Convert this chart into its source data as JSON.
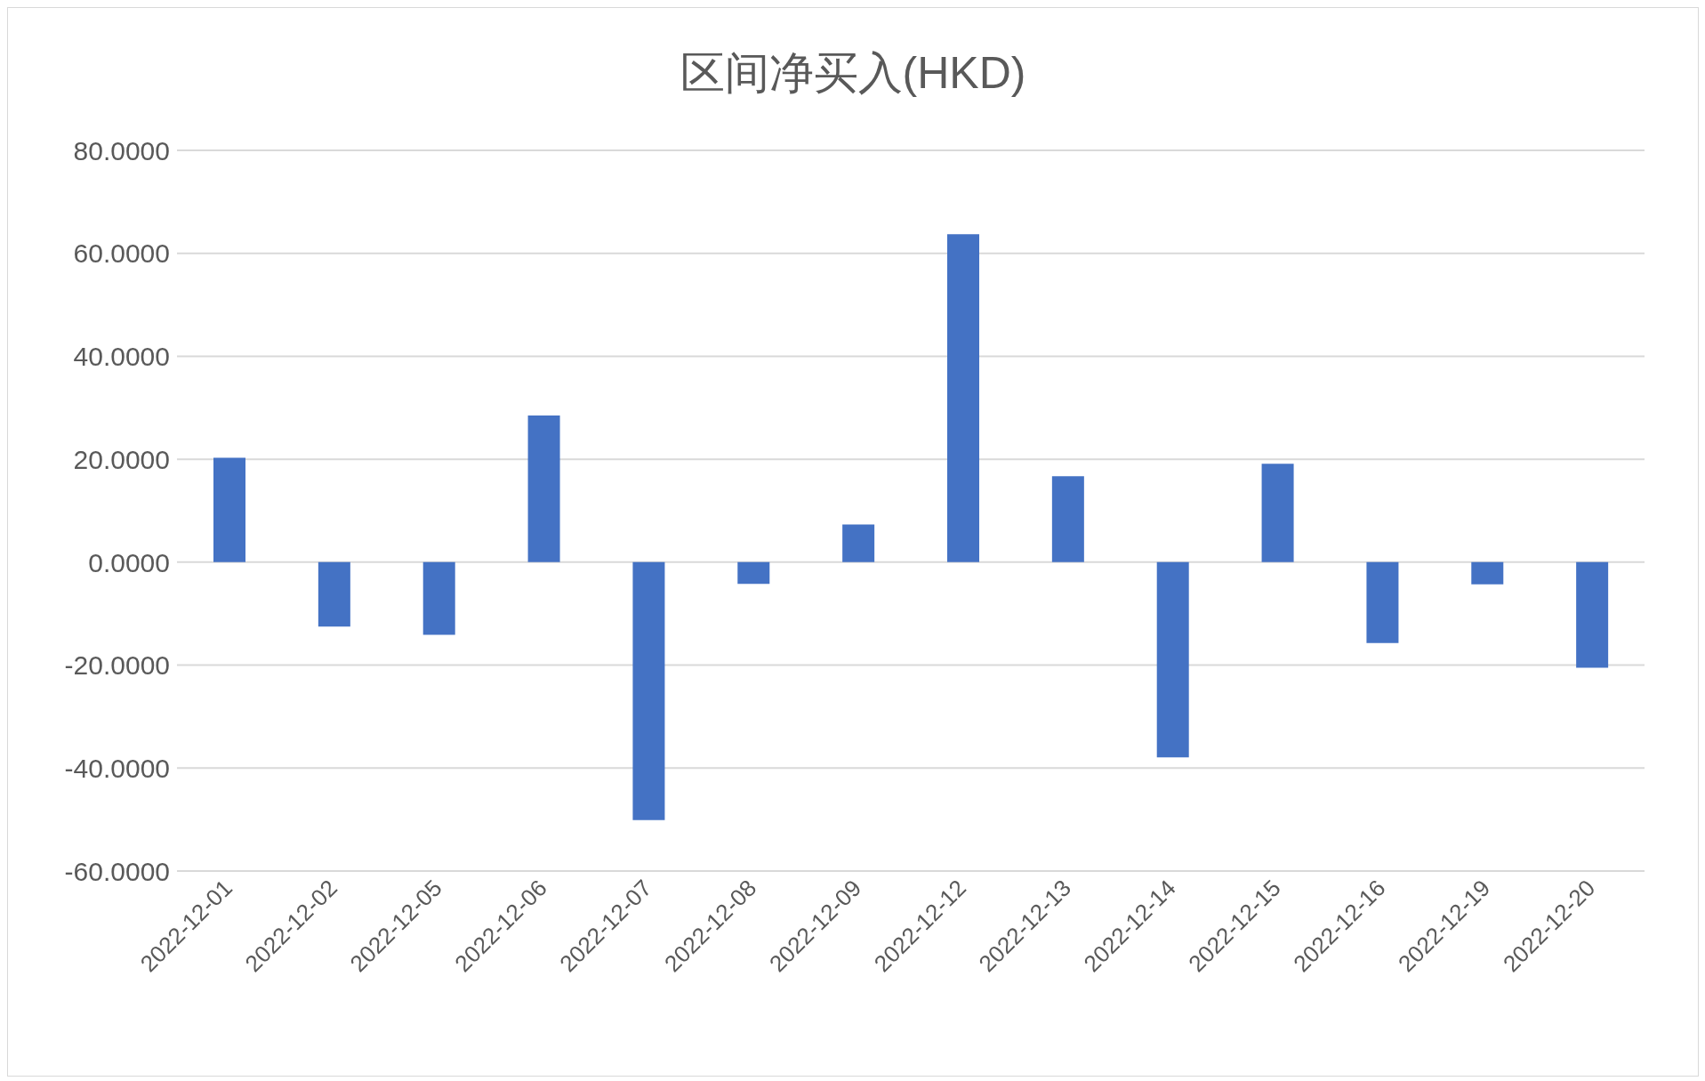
{
  "chart_data": {
    "type": "bar",
    "title": "区间净买入(HKD)",
    "categories": [
      "2022-12-01",
      "2022-12-02",
      "2022-12-05",
      "2022-12-06",
      "2022-12-07",
      "2022-12-08",
      "2022-12-09",
      "2022-12-12",
      "2022-12-13",
      "2022-12-14",
      "2022-12-15",
      "2022-12-16",
      "2022-12-19",
      "2022-12-20"
    ],
    "values": [
      20.3,
      -12.5,
      -14.1,
      28.5,
      -50.1,
      -4.2,
      7.3,
      63.7,
      16.7,
      -37.9,
      19.1,
      -15.7,
      -4.3,
      -20.5
    ],
    "color": "#4472c4",
    "ylim": [
      -60,
      80
    ],
    "yticks": [
      {
        "value": -60,
        "label": "-60.0000"
      },
      {
        "value": -40,
        "label": "-40.0000"
      },
      {
        "value": -20,
        "label": "-20.0000"
      },
      {
        "value": 0,
        "label": "0.0000"
      },
      {
        "value": 20,
        "label": "20.0000"
      },
      {
        "value": 40,
        "label": "40.0000"
      },
      {
        "value": 60,
        "label": "60.0000"
      },
      {
        "value": 80,
        "label": "80.0000"
      }
    ],
    "grid": "y"
  }
}
